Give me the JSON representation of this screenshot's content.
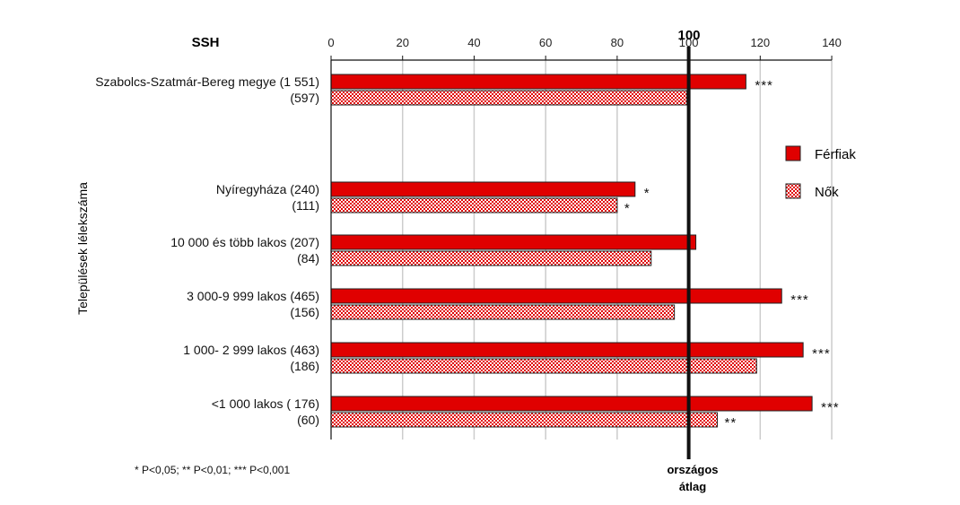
{
  "chart_data": {
    "type": "bar",
    "orientation": "horizontal",
    "header_label": "SSH",
    "ylabel": "Települések lélekszáma",
    "xlim": [
      0,
      140
    ],
    "x_ticks": [
      "0",
      "20",
      "40",
      "60",
      "80",
      "100",
      "120",
      "140"
    ],
    "reference_line": {
      "value": 100,
      "label": "100",
      "caption_line1": "országos",
      "caption_line2": "átlag"
    },
    "grid": true,
    "legend_position": "right",
    "series": [
      {
        "name": "Férfiak",
        "color": "#e00000",
        "pattern": "solid"
      },
      {
        "name": "Nők",
        "color": "#e00000",
        "pattern": "checkered"
      }
    ],
    "groups": [
      {
        "men_label": "Szabolcs-Szatmár-Bereg megye (1 551)",
        "women_label": "(597)",
        "men_value": 116,
        "women_value": 99.5,
        "men_sig": "***",
        "women_sig": ""
      },
      {
        "men_label": "Nyíregyháza (240)",
        "women_label": "(111)",
        "men_value": 85,
        "women_value": 80,
        "men_sig": "*",
        "women_sig": "*"
      },
      {
        "men_label": "10 000 és több lakos (207)",
        "women_label": "(84)",
        "men_value": 102,
        "women_value": 89.5,
        "men_sig": "",
        "women_sig": ""
      },
      {
        "men_label": "3 000-9 999 lakos (465)",
        "women_label": "(156)",
        "men_value": 126,
        "women_value": 96,
        "men_sig": "***",
        "women_sig": ""
      },
      {
        "men_label": "1 000- 2 999 lakos (463)",
        "women_label": "(186)",
        "men_value": 132,
        "women_value": 119,
        "men_sig": "***",
        "women_sig": ""
      },
      {
        "men_label": "<1 000 lakos ( 176)",
        "women_label": "(60)",
        "men_value": 134.5,
        "women_value": 108,
        "men_sig": "***",
        "women_sig": "**"
      }
    ],
    "footnote": "* P<0,05;  ** P<0,01;  *** P<0,001"
  }
}
